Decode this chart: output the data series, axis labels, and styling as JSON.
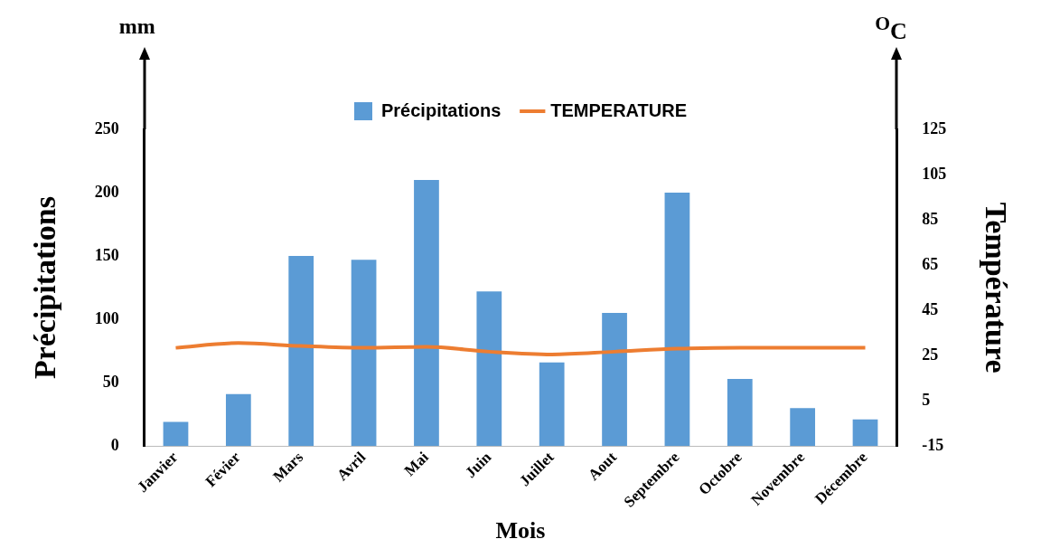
{
  "chart_data": {
    "type": "bar",
    "xlabel": "Mois",
    "ylabel": "Précipitations",
    "y2label": "Température",
    "annotations": [
      "mm",
      "$^{O}$C"
    ],
    "categories": [
      "Janvier",
      "Févier",
      "Mars",
      "Avril",
      "Mai",
      "Juin",
      "Juillet",
      "Aout",
      "Septembre",
      "Octobre",
      "Novembre",
      "Décembre"
    ],
    "series": [
      {
        "name": "Précipitations",
        "color": "#5b9bd5",
        "values": [
          19,
          41,
          150,
          147,
          210,
          122,
          66,
          105,
          200,
          53,
          30,
          21
        ]
      },
      {
        "name": "TEMPERATURE",
        "type": "line",
        "axis": "y2",
        "color": "#ed7d31",
        "values": [
          28.4,
          30.5,
          29.2,
          28.4,
          28.8,
          26.7,
          25.5,
          26.7,
          28,
          28.4,
          28.4,
          28.4
        ]
      }
    ],
    "ylim": [
      0,
      250
    ],
    "yticks": [
      0,
      50,
      100,
      150,
      200,
      250
    ],
    "y2lim": [
      -15,
      125
    ],
    "y2ticks": [
      -15,
      5,
      25,
      45,
      65,
      85,
      105,
      125
    ],
    "grid": false,
    "legend": "top"
  }
}
